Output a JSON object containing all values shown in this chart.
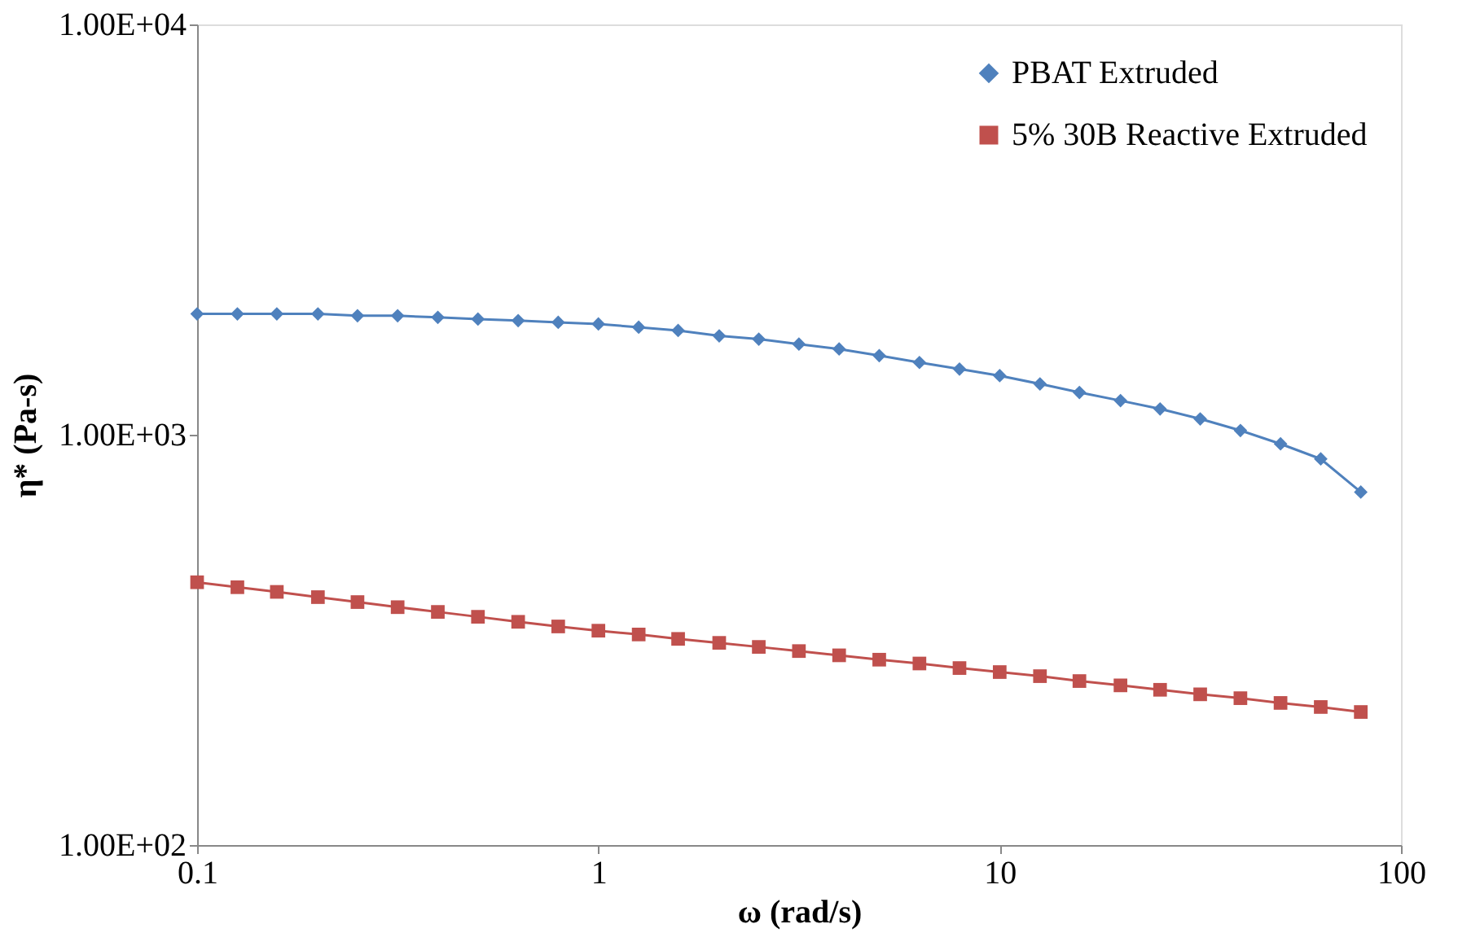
{
  "chart_data": {
    "type": "line",
    "xlabel": "ω (rad/s)",
    "ylabel": "η* (Pa-s)",
    "log": "xy",
    "grid": false,
    "legend": "top right",
    "line_style": "solid",
    "x": [
      0.1,
      0.126,
      0.158,
      0.2,
      0.251,
      0.316,
      0.398,
      0.501,
      0.631,
      0.794,
      1,
      1.26,
      1.58,
      2,
      2.51,
      3.16,
      3.98,
      5.01,
      6.31,
      7.94,
      10,
      12.6,
      15.8,
      20,
      25.1,
      31.6,
      39.8,
      50.1,
      63.1,
      79.4
    ],
    "xlim": [
      0.1,
      100
    ],
    "xticks": [
      0.1,
      1,
      10,
      100
    ],
    "ylim": [
      100,
      10000
    ],
    "yticks": [
      {
        "value": 100,
        "label": "1.00E+02"
      },
      {
        "value": 1000,
        "label": "1.00E+03"
      },
      {
        "value": 10000,
        "label": "1.00E+04"
      }
    ],
    "series": [
      {
        "name": "PBAT Extruded",
        "color": "#4f81bd",
        "marker": "diamond",
        "values": [
          1970,
          1970,
          1970,
          1970,
          1950,
          1950,
          1932,
          1914,
          1897,
          1879,
          1862,
          1828,
          1795,
          1742,
          1710,
          1663,
          1618,
          1559,
          1500,
          1446,
          1393,
          1330,
          1268,
          1211,
          1156,
          1093,
          1024,
          950,
          873,
          725
        ]
      },
      {
        "name": "5% 30B Reactive Extruded",
        "color": "#c0504d",
        "marker": "square",
        "values": [
          437,
          425,
          414,
          402,
          391,
          380,
          370,
          360,
          350,
          341,
          333,
          326,
          318,
          311,
          304,
          297,
          290,
          283,
          277,
          270,
          264,
          258,
          251,
          245,
          239,
          233,
          228,
          222,
          217,
          211
        ]
      }
    ]
  }
}
